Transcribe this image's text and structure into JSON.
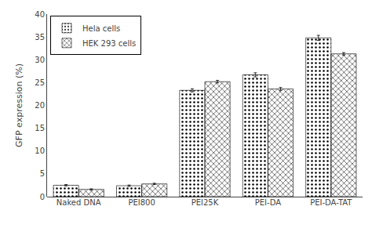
{
  "chart_data": {
    "type": "bar",
    "categories": [
      "Naked DNA",
      "PEI800",
      "PEI25K",
      "PEI-DA",
      "PEI-DA-TAT"
    ],
    "series": [
      {
        "name": "Hela cells",
        "color": "#e8e8e8",
        "values": [
          2.5,
          2.4,
          23.3,
          26.7,
          34.8
        ],
        "errors": [
          0.15,
          0.15,
          0.35,
          0.45,
          0.55
        ]
      },
      {
        "name": "HEK 293 cells",
        "color": "#b8b8b8",
        "values": [
          1.6,
          2.8,
          25.2,
          23.6,
          31.3
        ],
        "errors": [
          0.12,
          0.15,
          0.28,
          0.32,
          0.28
        ]
      }
    ],
    "ylabel": "GFP expression (%)",
    "ylim": [
      0,
      40
    ],
    "yticks": [
      0,
      5,
      10,
      15,
      20,
      25,
      30,
      35,
      40
    ],
    "grid": false,
    "legend": "upper left"
  }
}
